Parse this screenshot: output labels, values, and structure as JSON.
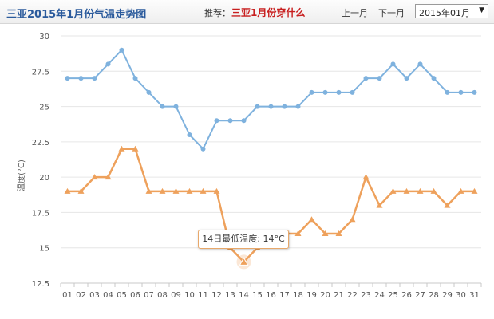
{
  "header": {
    "title": "三亚2015年1月份气温走势图",
    "recommend_label": "推荐：",
    "recommend_link": "三亚1月份穿什么",
    "prev_month": "上一月",
    "next_month": "下一月",
    "month_select_value": "2015年01月"
  },
  "tooltip": {
    "text": "14日最低温度: 14°C"
  },
  "colors": {
    "high_series": "#7fb2de",
    "low_series": "#eea15c",
    "grid": "#e6e6e6",
    "title": "#2a5a9c",
    "link": "#c81f1f"
  },
  "chart_data": {
    "type": "line",
    "ylabel": "温度(°C)",
    "xlabel": "",
    "ylim": [
      12.5,
      30
    ],
    "yticks": [
      "12.5",
      "15",
      "17.5",
      "20",
      "22.5",
      "25",
      "27.5",
      "30"
    ],
    "grid": true,
    "categories": [
      "01",
      "02",
      "03",
      "04",
      "05",
      "06",
      "07",
      "08",
      "09",
      "10",
      "11",
      "12",
      "13",
      "14",
      "15",
      "16",
      "17",
      "18",
      "19",
      "20",
      "21",
      "22",
      "23",
      "24",
      "25",
      "26",
      "27",
      "28",
      "29",
      "30",
      "31"
    ],
    "series": [
      {
        "marker": "circle",
        "values": [
          27,
          27,
          27,
          28,
          29,
          27,
          26,
          25,
          25,
          23,
          22,
          24,
          24,
          24,
          25,
          25,
          25,
          25,
          26,
          26,
          26,
          26,
          27,
          27,
          28,
          27,
          28,
          27,
          26,
          26,
          26
        ]
      },
      {
        "marker": "triangle",
        "values": [
          19,
          19,
          20,
          20,
          22,
          22,
          19,
          19,
          19,
          19,
          19,
          19,
          15,
          14,
          15,
          16,
          16,
          16,
          17,
          16,
          16,
          17,
          20,
          18,
          19,
          19,
          19,
          19,
          18,
          19,
          19
        ]
      }
    ],
    "annotation": {
      "category": "14",
      "value": 14
    }
  }
}
